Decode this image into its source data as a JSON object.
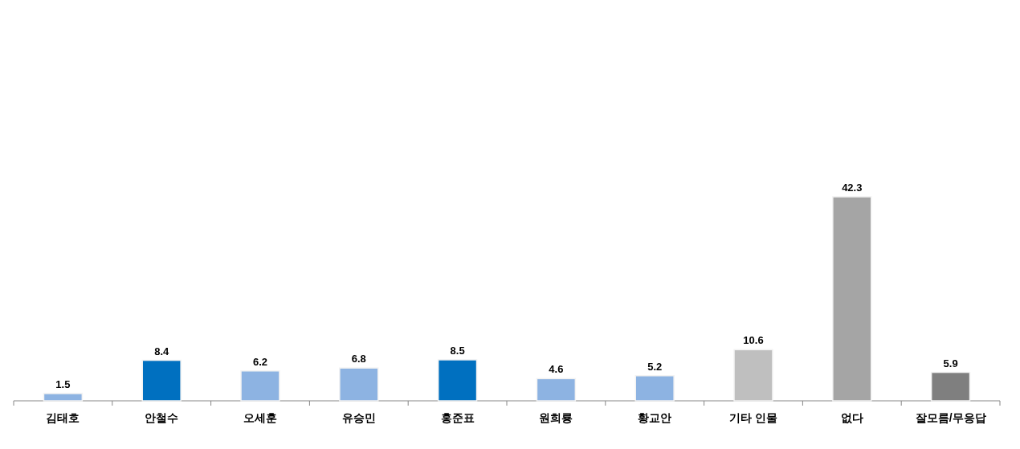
{
  "chart_data": {
    "type": "bar",
    "categories": [
      "김태호",
      "안철수",
      "오세훈",
      "유승민",
      "홍준표",
      "원희룡",
      "황교안",
      "기타 인물",
      "없다",
      "잘모름/무응답"
    ],
    "values": [
      1.5,
      8.4,
      6.2,
      6.8,
      8.5,
      4.6,
      5.2,
      10.6,
      42.3,
      5.9
    ],
    "colors": [
      "#8db3e2",
      "#0070c0",
      "#8db3e2",
      "#8db3e2",
      "#0070c0",
      "#8db3e2",
      "#8db3e2",
      "#bfbfbf",
      "#a5a5a5",
      "#7f7f7f"
    ],
    "tick_labels": "x",
    "data_labels": true
  }
}
